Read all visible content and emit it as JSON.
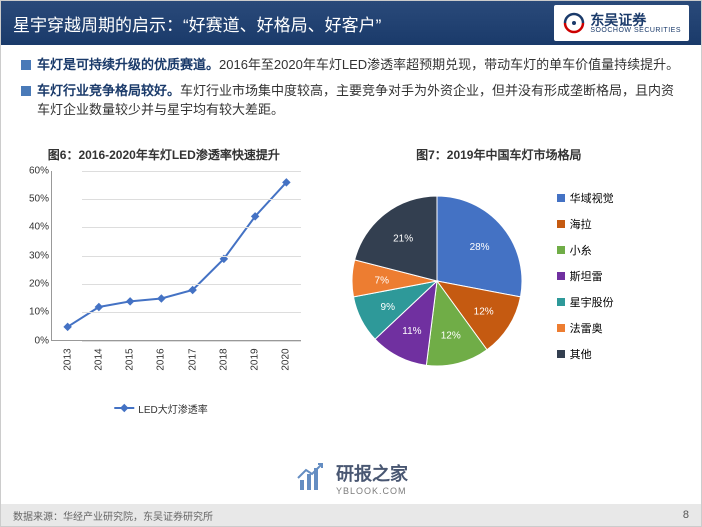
{
  "header": {
    "title": "星宇穿越周期的启示：“好赛道、好格局、好客户”",
    "logo_main": "东吴证券",
    "logo_sub": "SOOCHOW SECURITIES"
  },
  "bullets": [
    {
      "bold": "车灯是可持续升级的优质赛道。",
      "rest": "2016年至2020年车灯LED渗透率超预期兑现，带动车灯的单车价值量持续提升。"
    },
    {
      "bold": "车灯行业竞争格局较好。",
      "rest": "车灯行业市场集中度较高，主要竞争对手为外资企业，但并没有形成垄断格局，且内资车灯企业数量较少并与星宇均有较大差距。"
    }
  ],
  "line_chart": {
    "title": "图6：2016-2020年车灯LED渗透率快速提升",
    "type": "line",
    "x_labels": [
      "2013",
      "2014",
      "2015",
      "2016",
      "2017",
      "2018",
      "2019",
      "2020"
    ],
    "values": [
      5,
      12,
      14,
      15,
      18,
      29,
      44,
      56
    ],
    "y_ticks": [
      0,
      10,
      20,
      30,
      40,
      50,
      60
    ],
    "ylim": [
      0,
      60
    ],
    "line_color": "#4472c4",
    "marker": "diamond",
    "marker_size": 6,
    "grid_color": "#dddddd",
    "legend_label": "LED大灯渗透率",
    "label_fontsize": 10,
    "y_suffix": "%"
  },
  "pie_chart": {
    "title": "图7：2019年中国车灯市场格局",
    "type": "pie",
    "slices": [
      {
        "label": "华域视觉",
        "value": 28,
        "color": "#4472c4",
        "show_pct": true
      },
      {
        "label": "海拉",
        "value": 12,
        "color": "#c55a11",
        "show_pct": true
      },
      {
        "label": "小糸",
        "value": 12,
        "color": "#70ad47",
        "show_pct": true
      },
      {
        "label": "斯坦雷",
        "value": 11,
        "color": "#7030a0",
        "show_pct": true
      },
      {
        "label": "星宇股份",
        "value": 9,
        "color": "#2e9999",
        "show_pct": true
      },
      {
        "label": "法雷奥",
        "value": 7,
        "color": "#ed7d31",
        "show_pct": true
      },
      {
        "label": "其他",
        "value": 21,
        "color": "#333f50",
        "show_pct": true
      }
    ],
    "label_fontsize": 10,
    "label_color": "#ffffff",
    "start_angle": -90
  },
  "footer": {
    "source": "数据来源：华经产业研究院，东吴证券研究所",
    "page": "8"
  },
  "watermark": {
    "main": "研报之家",
    "sub": "YBLOOK.COM"
  }
}
